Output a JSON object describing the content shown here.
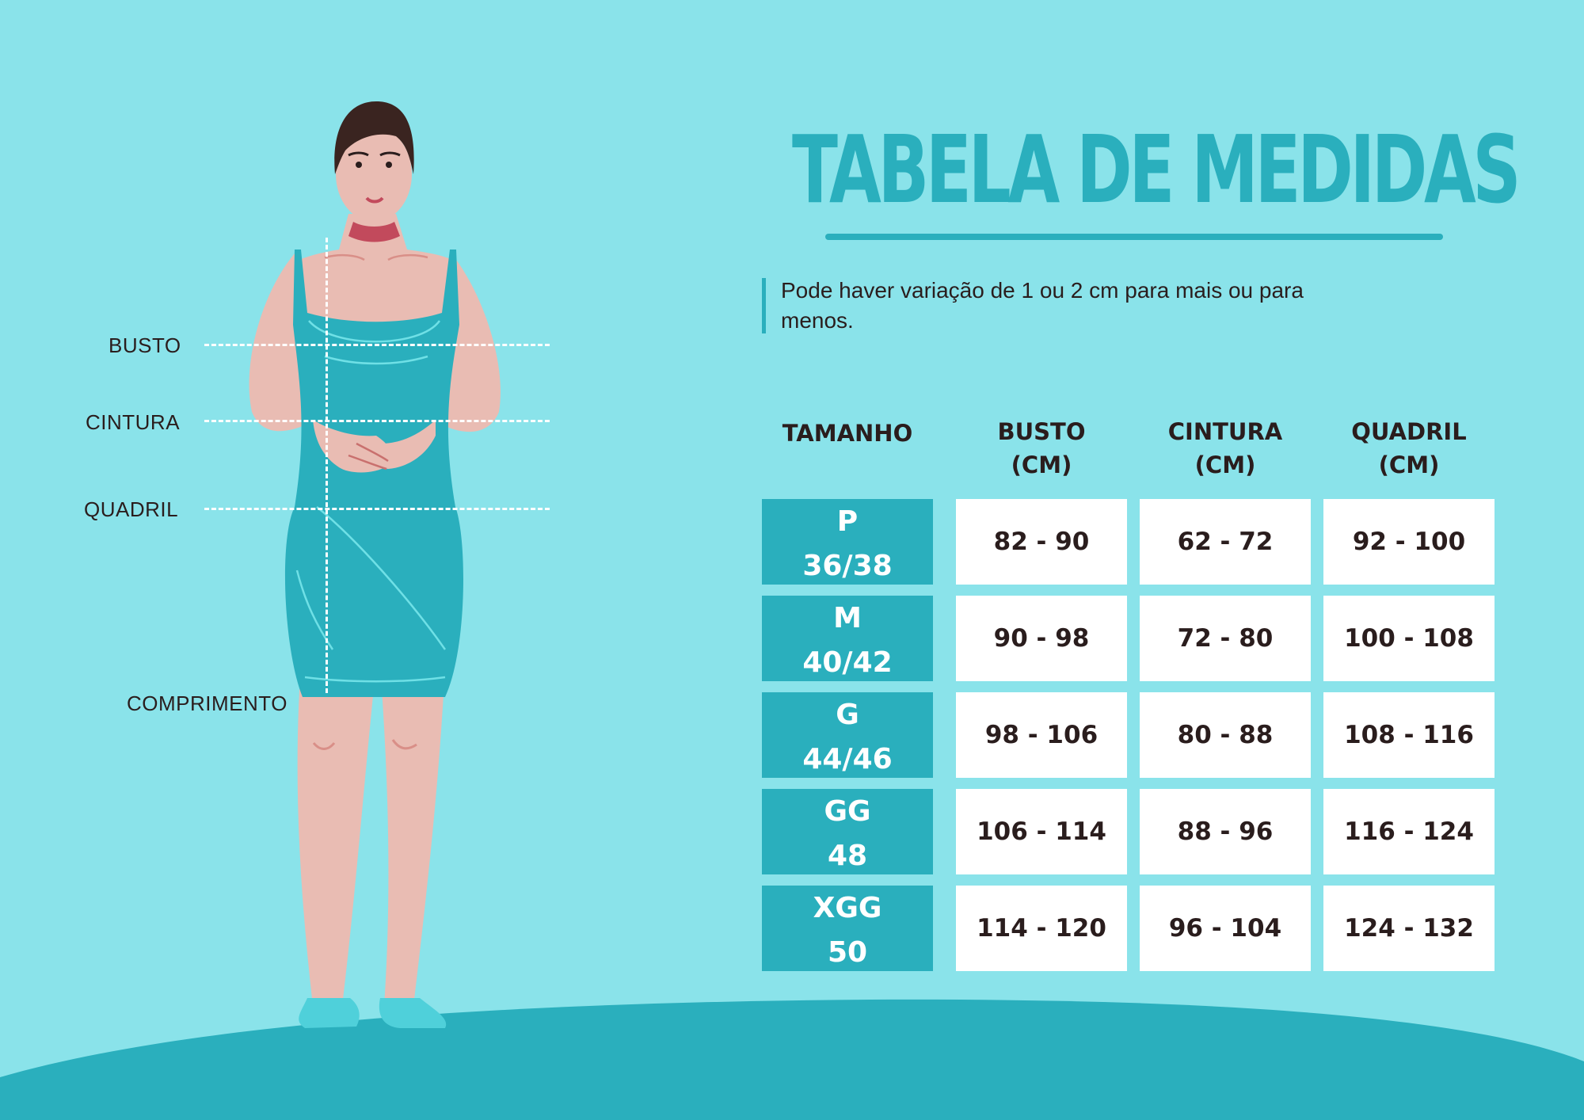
{
  "title": "TABELA DE MEDIDAS",
  "note": "Pode haver variação de 1 ou 2 cm para mais ou para menos.",
  "measure_labels": {
    "busto": "BUSTO",
    "cintura": "CINTURA",
    "quadril": "QUADRIL",
    "comprimento": "COMPRIMENTO"
  },
  "table": {
    "headers": {
      "tamanho": "TAMANHO",
      "busto": [
        "BUSTO",
        "(CM)"
      ],
      "cintura": [
        "CINTURA",
        "(CM)"
      ],
      "quadril": [
        "QUADRIL",
        "(CM)"
      ]
    },
    "rows": [
      {
        "size": "P",
        "number": "36/38",
        "busto": "82 - 90",
        "cintura": "62 - 72",
        "quadril": "92 - 100"
      },
      {
        "size": "M",
        "number": "40/42",
        "busto": "90 - 98",
        "cintura": "72 - 80",
        "quadril": "100 - 108"
      },
      {
        "size": "G",
        "number": "44/46",
        "busto": "98 - 106",
        "cintura": "80 - 88",
        "quadril": "108 - 116"
      },
      {
        "size": "GG",
        "number": "48",
        "busto": "106 - 114",
        "cintura": "88 - 96",
        "quadril": "116 - 124"
      },
      {
        "size": "XGG",
        "number": "50",
        "busto": "114 - 120",
        "cintura": "96 - 104",
        "quadril": "124 - 132"
      }
    ]
  },
  "colors": {
    "background": "#8ae3ea",
    "accent": "#2aafbd",
    "text": "#2a1d1d",
    "skin": "#e9bcb3",
    "cell": "#ffffff"
  }
}
